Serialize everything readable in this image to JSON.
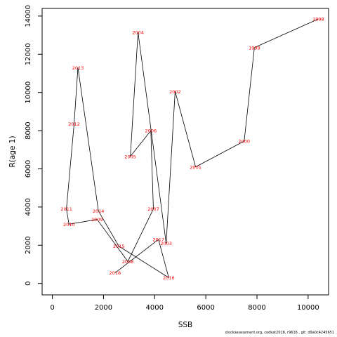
{
  "chart_data": {
    "type": "line",
    "title": "",
    "xlabel": "SSB",
    "ylabel": "R(age 1)",
    "xlim": [
      -400,
      10800
    ],
    "ylim": [
      -600,
      14400
    ],
    "xticks": [
      0,
      2000,
      4000,
      6000,
      8000,
      10000
    ],
    "yticks": [
      0,
      2000,
      4000,
      6000,
      8000,
      10000,
      12000,
      14000
    ],
    "grid": false,
    "line_color": "#000000",
    "label_color": "#ff0000",
    "points": [
      {
        "year": "1998",
        "x": 10400,
        "y": 13850
      },
      {
        "year": "1999",
        "x": 7900,
        "y": 12350
      },
      {
        "year": "2000",
        "x": 7500,
        "y": 7450
      },
      {
        "year": "2001",
        "x": 5600,
        "y": 6100
      },
      {
        "year": "2002",
        "x": 4800,
        "y": 10050
      },
      {
        "year": "2003",
        "x": 4450,
        "y": 2100
      },
      {
        "year": "2004",
        "x": 3350,
        "y": 13150
      },
      {
        "year": "2005",
        "x": 3050,
        "y": 6650
      },
      {
        "year": "2006",
        "x": 3850,
        "y": 8000
      },
      {
        "year": "2007",
        "x": 3950,
        "y": 3900
      },
      {
        "year": "2008",
        "x": 2950,
        "y": 1150
      },
      {
        "year": "2009",
        "x": 1750,
        "y": 3350
      },
      {
        "year": "2010",
        "x": 650,
        "y": 3100
      },
      {
        "year": "2011",
        "x": 550,
        "y": 3900
      },
      {
        "year": "2012",
        "x": 850,
        "y": 8350
      },
      {
        "year": "2013",
        "x": 1000,
        "y": 11300
      },
      {
        "year": "2014",
        "x": 1800,
        "y": 3800
      },
      {
        "year": "2015",
        "x": 2600,
        "y": 1950
      },
      {
        "year": "2016",
        "x": 4550,
        "y": 300
      },
      {
        "year": "2017",
        "x": 4150,
        "y": 2300
      },
      {
        "year": "2018",
        "x": 2450,
        "y": 550
      }
    ]
  },
  "footer": "stockassessment.org, codkat2018, r9616 , git: d9a0c4245651"
}
